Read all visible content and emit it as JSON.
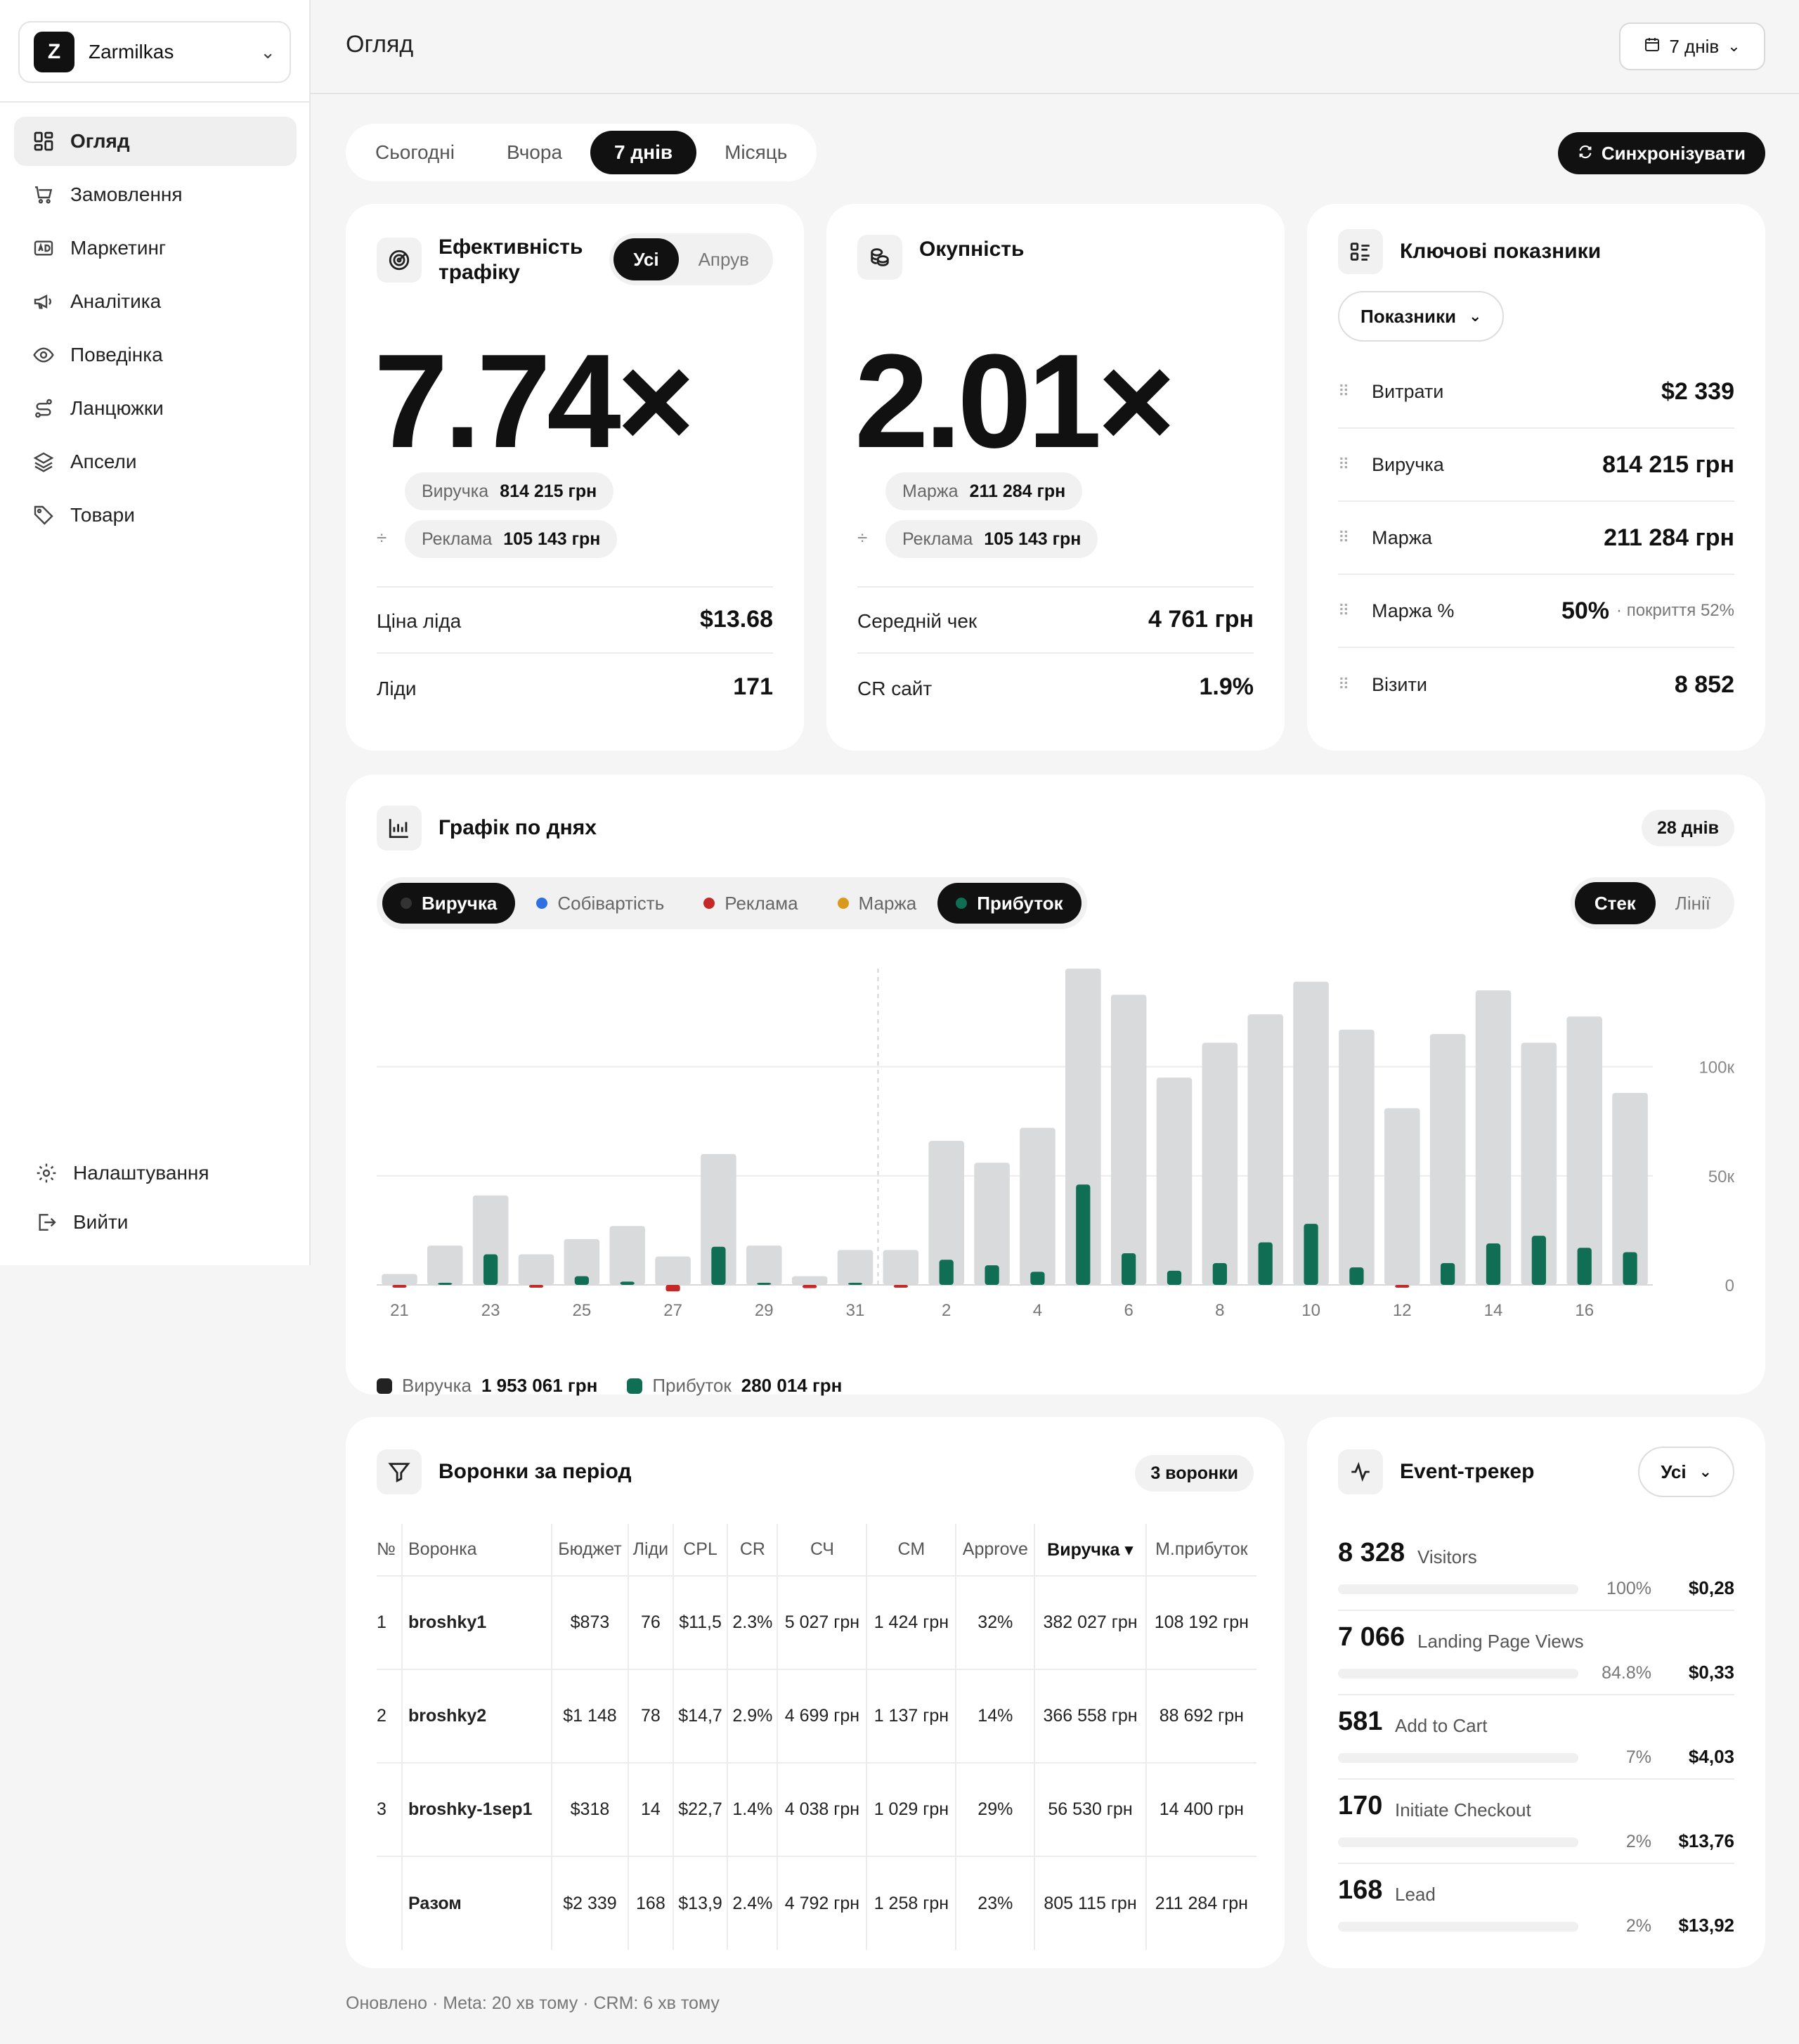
{
  "sidebar": {
    "workspace": {
      "initial": "Z",
      "name": "Zarmilkas"
    },
    "items": [
      {
        "label": "Огляд",
        "icon": "dashboard-icon",
        "active": true
      },
      {
        "label": "Замовлення",
        "icon": "cart-icon"
      },
      {
        "label": "Маркетинг",
        "icon": "ad-icon"
      },
      {
        "label": "Аналітика",
        "icon": "megaphone-icon"
      },
      {
        "label": "Поведінка",
        "icon": "eye-icon"
      },
      {
        "label": "Ланцюжки",
        "icon": "route-icon"
      },
      {
        "label": "Апсели",
        "icon": "layers-icon"
      },
      {
        "label": "Товари",
        "icon": "tag-icon"
      }
    ],
    "bottom": [
      {
        "label": "Налаштування",
        "icon": "gear-icon"
      },
      {
        "label": "Вийти",
        "icon": "logout-icon"
      }
    ]
  },
  "header": {
    "title": "Огляд",
    "range_label": "7 днів"
  },
  "period_tabs": [
    {
      "label": "Сьогодні"
    },
    {
      "label": "Вчора"
    },
    {
      "label": "7 днів",
      "active": true
    },
    {
      "label": "Місяць"
    }
  ],
  "sync_label": "Синхронізувати",
  "efficiency": {
    "title_line1": "Ефективність",
    "title_line2": "трафіку",
    "toggle": [
      "Усі",
      "Апрув"
    ],
    "value": "7.74×",
    "revenue_label": "Виручка",
    "revenue_value": "814 215 грн",
    "divider": "÷",
    "ads_label": "Реклама",
    "ads_value": "105 143 грн",
    "rows": [
      {
        "label": "Ціна ліда",
        "value": "$13.68"
      },
      {
        "label": "Ліди",
        "value": "171"
      }
    ]
  },
  "payback": {
    "title": "Окупність",
    "value": "2.01×",
    "margin_label": "Маржа",
    "margin_value": "211 284 грн",
    "divider": "÷",
    "ads_label": "Реклама",
    "ads_value": "105 143 грн",
    "rows": [
      {
        "label": "Середній чек",
        "value": "4 761 грн"
      },
      {
        "label": "CR сайт",
        "value": "1.9%"
      }
    ]
  },
  "kpis": {
    "title": "Ключові показники",
    "dropdown": "Показники",
    "drag": "⠿",
    "rows": [
      {
        "label": "Витрати",
        "value": "$2 339",
        "sub": ""
      },
      {
        "label": "Виручка",
        "value": "814 215 грн",
        "sub": ""
      },
      {
        "label": "Маржа",
        "value": "211 284 грн",
        "sub": ""
      },
      {
        "label": "Маржа %",
        "value": "50%",
        "sub": "· покриття 52%"
      },
      {
        "label": "Візити",
        "value": "8 852",
        "sub": ""
      }
    ]
  },
  "daily": {
    "title": "Графік по днях",
    "badge": "28 днів",
    "series_tabs": [
      {
        "label": "Виручка",
        "color": "#222222",
        "active": true
      },
      {
        "label": "Собівартість",
        "color": "#2f6fe4"
      },
      {
        "label": "Реклама",
        "color": "#c62828"
      },
      {
        "label": "Маржа",
        "color": "#d99a1c"
      },
      {
        "label": "Прибуток",
        "color": "#0f6e54",
        "active": true
      }
    ],
    "mode_tabs": [
      {
        "label": "Стек",
        "active": true
      },
      {
        "label": "Лінії"
      }
    ],
    "totals": [
      {
        "label": "Виручка",
        "value": "1 953 061 грн",
        "color": "#222222"
      },
      {
        "label": "Прибуток",
        "value": "280 014 грн",
        "color": "#0f6e54"
      }
    ]
  },
  "chart_data": {
    "type": "bar",
    "categories": [
      "21",
      "22",
      "23",
      "24",
      "25",
      "26",
      "27",
      "28",
      "29",
      "30",
      "31",
      "1",
      "2",
      "3",
      "4",
      "5",
      "6",
      "7",
      "8",
      "9",
      "10",
      "11",
      "12",
      "13",
      "14",
      "15",
      "16",
      "17"
    ],
    "tick_labels": [
      "21",
      "23",
      "25",
      "27",
      "29",
      "31",
      "2",
      "4",
      "6",
      "8",
      "10",
      "12",
      "14",
      "16"
    ],
    "series": [
      {
        "name": "Виручка",
        "color": "#d9dadc",
        "values": [
          5000,
          18000,
          41000,
          14000,
          21000,
          27000,
          13000,
          60000,
          18000,
          4000,
          16000,
          16000,
          66000,
          56000,
          72000,
          145000,
          133000,
          95000,
          111000,
          124000,
          139000,
          117000,
          81000,
          115000,
          135000,
          111000,
          123000,
          88000
        ]
      },
      {
        "name": "Прибуток",
        "color": "#0f6e54",
        "values": [
          -1000,
          500,
          14000,
          -500,
          4000,
          1500,
          -3000,
          17500,
          500,
          -1500,
          500,
          -500,
          11500,
          9000,
          6000,
          46000,
          14500,
          6500,
          10000,
          19500,
          28000,
          8000,
          -500,
          10000,
          19000,
          22500,
          17000,
          15000
        ]
      }
    ],
    "y_ticks": [
      "0",
      "50к",
      "100к"
    ],
    "ylim": [
      0,
      145000
    ],
    "grid": true
  },
  "funnels": {
    "title": "Воронки за період",
    "badge": "3 воронки",
    "headers": [
      "№",
      "Воронка",
      "Бюджет",
      "Ліди",
      "CPL",
      "CR",
      "СЧ",
      "СМ",
      "Approve",
      "Виручка ▾",
      "М.прибуток"
    ],
    "rows": [
      [
        "1",
        "broshky1",
        "$873",
        "76",
        "$11,5",
        "2.3%",
        "5 027 грн",
        "1 424 грн",
        "32%",
        "382 027 грн",
        "108 192 грн"
      ],
      [
        "2",
        "broshky2",
        "$1 148",
        "78",
        "$14,7",
        "2.9%",
        "4 699 грн",
        "1 137 грн",
        "14%",
        "366 558 грн",
        "88 692 грн"
      ],
      [
        "3",
        "broshky-1sep1",
        "$318",
        "14",
        "$22,7",
        "1.4%",
        "4 038 грн",
        "1 029 грн",
        "29%",
        "56 530 грн",
        "14 400 грн"
      ]
    ],
    "total": [
      "",
      "Разом",
      "$2 339",
      "168",
      "$13,9",
      "2.4%",
      "4 792 грн",
      "1 258 грн",
      "23%",
      "805 115 грн",
      "211 284 грн"
    ]
  },
  "events": {
    "title": "Event-трекер",
    "filter": "Усі",
    "rows": [
      {
        "count": "8 328",
        "name": "Visitors",
        "pct": "100%",
        "cost": "$0,28"
      },
      {
        "count": "7 066",
        "name": "Landing Page Views",
        "pct": "84.8%",
        "cost": "$0,33"
      },
      {
        "count": "581",
        "name": "Add to Cart",
        "pct": "7%",
        "cost": "$4,03"
      },
      {
        "count": "170",
        "name": "Initiate Checkout",
        "pct": "2%",
        "cost": "$13,76"
      },
      {
        "count": "168",
        "name": "Lead",
        "pct": "2%",
        "cost": "$13,92"
      }
    ]
  },
  "footer": "Оновлено · Meta: 20 хв тому · CRM: 6 хв тому"
}
